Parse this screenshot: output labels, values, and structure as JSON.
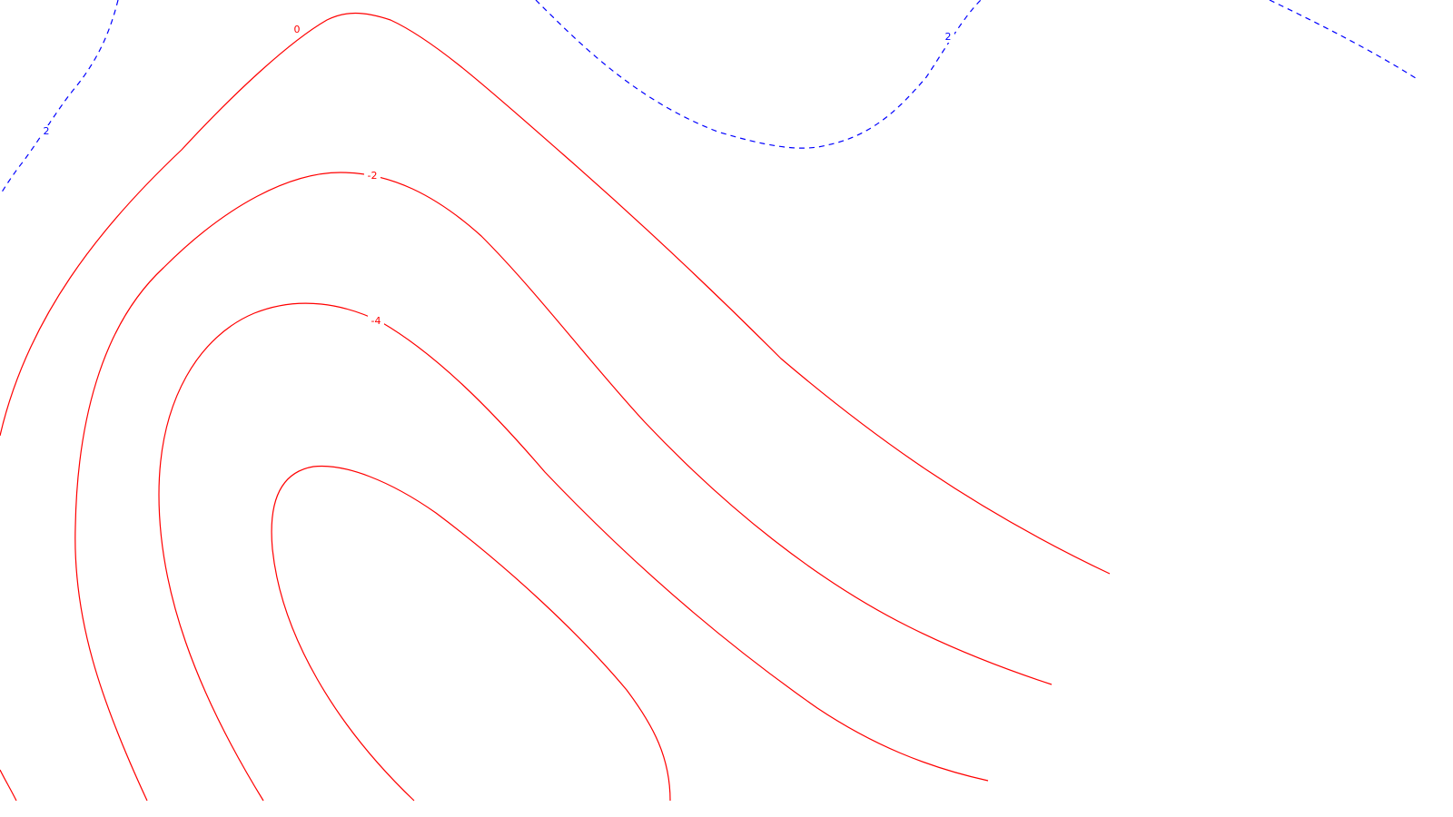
{
  "chart_data": {
    "type": "contour",
    "title": "",
    "xlabel": "",
    "ylabel": "",
    "axes_visible": false,
    "grid": false,
    "legend": "none",
    "colors": {
      "positive": "#0000ff",
      "zero": "#ff0000",
      "negative": "#ff0000",
      "background": "#ffffff"
    },
    "levels": [
      {
        "id": "pos-2-left",
        "value": 2,
        "label": "2",
        "style": "dashed",
        "color": "#0000ff"
      },
      {
        "id": "pos-2-top",
        "value": 2,
        "label": "2",
        "style": "dashed",
        "color": "#0000ff"
      },
      {
        "id": "pos-2-right",
        "value": 2,
        "label": "",
        "style": "dashed",
        "color": "#0000ff"
      },
      {
        "id": "zero",
        "value": 0,
        "label": "0",
        "style": "solid",
        "color": "#ff0000"
      },
      {
        "id": "neg-2",
        "value": -2,
        "label": "-2",
        "style": "solid",
        "color": "#ff0000"
      },
      {
        "id": "neg-4",
        "value": -4,
        "label": "-4",
        "style": "solid",
        "color": "#ff0000"
      },
      {
        "id": "neg-6",
        "value": -6,
        "label": "",
        "style": "solid",
        "color": "#ff0000"
      }
    ]
  }
}
